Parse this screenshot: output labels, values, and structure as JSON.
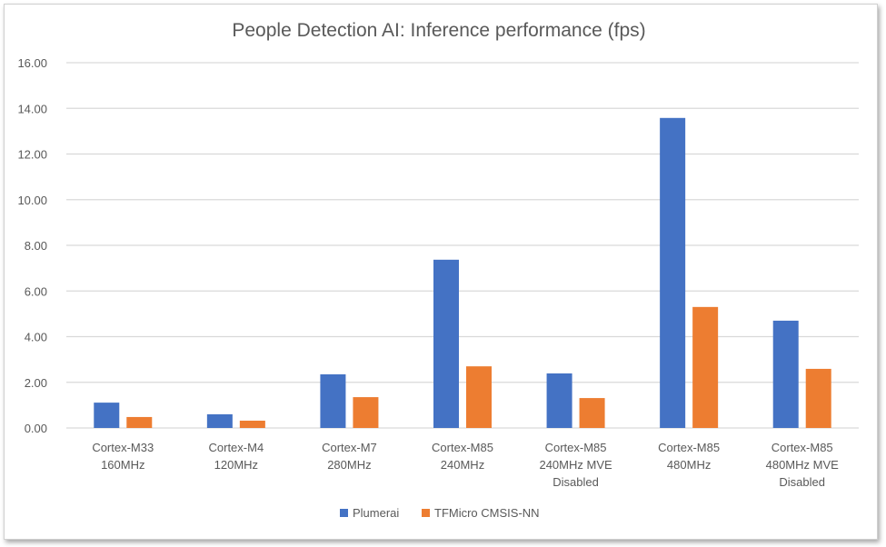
{
  "chart_data": {
    "type": "bar",
    "title": "People Detection AI: Inference performance (fps)",
    "xlabel": "",
    "ylabel": "",
    "ylim": [
      0,
      16
    ],
    "yticks": [
      "0.00",
      "2.00",
      "4.00",
      "6.00",
      "8.00",
      "10.00",
      "12.00",
      "14.00",
      "16.00"
    ],
    "grid": true,
    "legend_position": "bottom",
    "categories": [
      [
        "Cortex-M33",
        "160MHz"
      ],
      [
        "Cortex-M4",
        "120MHz"
      ],
      [
        "Cortex-M7",
        "280MHz"
      ],
      [
        "Cortex-M85",
        "240MHz"
      ],
      [
        "Cortex-M85",
        "240MHz MVE",
        "Disabled"
      ],
      [
        "Cortex-M85",
        "480MHz"
      ],
      [
        "Cortex-M85",
        "480MHz MVE",
        "Disabled"
      ]
    ],
    "series": [
      {
        "name": "Plumerai",
        "color": "#4472c4",
        "values": [
          1.11,
          0.6,
          2.35,
          7.37,
          2.39,
          13.58,
          4.7
        ]
      },
      {
        "name": "TFMicro CMSIS-NN",
        "color": "#ed7d31",
        "values": [
          0.48,
          0.32,
          1.35,
          2.7,
          1.31,
          5.3,
          2.59
        ]
      }
    ]
  }
}
